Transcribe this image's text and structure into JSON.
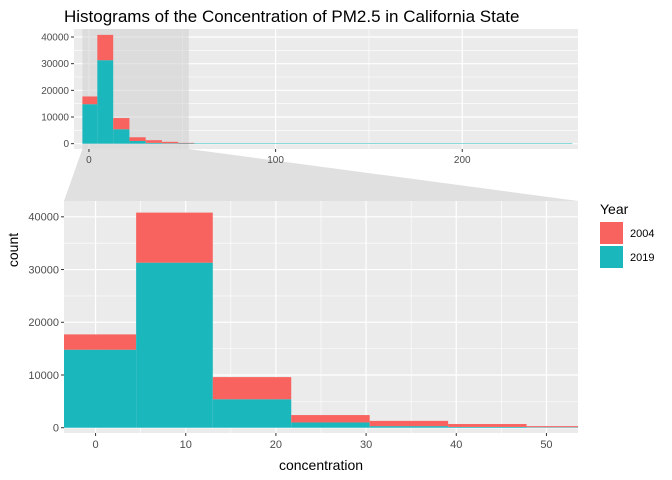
{
  "chart_data": {
    "type": "bar",
    "title": "Histograms of the Concentration of PM2.5 in California State",
    "xlabel": "concentration",
    "ylabel": "count",
    "stacked": true,
    "bins": [
      {
        "x0": -3.5,
        "x1": 4.5
      },
      {
        "x0": 4.5,
        "x1": 13.0
      },
      {
        "x0": 13.0,
        "x1": 21.7
      },
      {
        "x0": 21.7,
        "x1": 30.4
      },
      {
        "x0": 30.4,
        "x1": 39.1
      },
      {
        "x0": 39.1,
        "x1": 47.8
      },
      {
        "x0": 47.8,
        "x1": 56.5
      },
      {
        "x0": 56.5,
        "x1": 259
      }
    ],
    "series": [
      {
        "name": "2019",
        "color": "#1ab7bd",
        "values": [
          14800,
          31300,
          5400,
          1000,
          300,
          150,
          100,
          100
        ]
      },
      {
        "name": "2004",
        "color": "#f8635f",
        "values": [
          2900,
          9500,
          4200,
          1400,
          1000,
          550,
          200,
          0
        ]
      }
    ],
    "legend": {
      "title": "Year",
      "placement": "right",
      "entries": [
        "2004",
        "2019"
      ]
    },
    "panels": {
      "overview": {
        "xlim": [
          -8,
          262
        ],
        "ylim": [
          -2000,
          43000
        ],
        "xticks": [
          "0",
          "100",
          "200"
        ],
        "xtick_values": [
          0,
          100,
          200
        ],
        "yticks": [
          "0",
          "10000",
          "20000",
          "30000",
          "40000"
        ],
        "ytick_values": [
          0,
          10000,
          20000,
          30000,
          40000
        ],
        "zoom_range": [
          -3.5,
          53.5
        ]
      },
      "zoom": {
        "xlim": [
          -3.5,
          53.5
        ],
        "ylim": [
          -1000,
          43000
        ],
        "xticks": [
          "0",
          "10",
          "20",
          "30",
          "40",
          "50"
        ],
        "xtick_values": [
          0,
          10,
          20,
          30,
          40,
          50
        ],
        "yticks": [
          "0",
          "10000",
          "20000",
          "30000",
          "40000"
        ],
        "ytick_values": [
          0,
          10000,
          20000,
          30000,
          40000
        ]
      }
    },
    "colors": {
      "panel_bg": "#ebebeb",
      "grid": "#ffffff",
      "zoom_shade": "#d0d0d0"
    }
  }
}
